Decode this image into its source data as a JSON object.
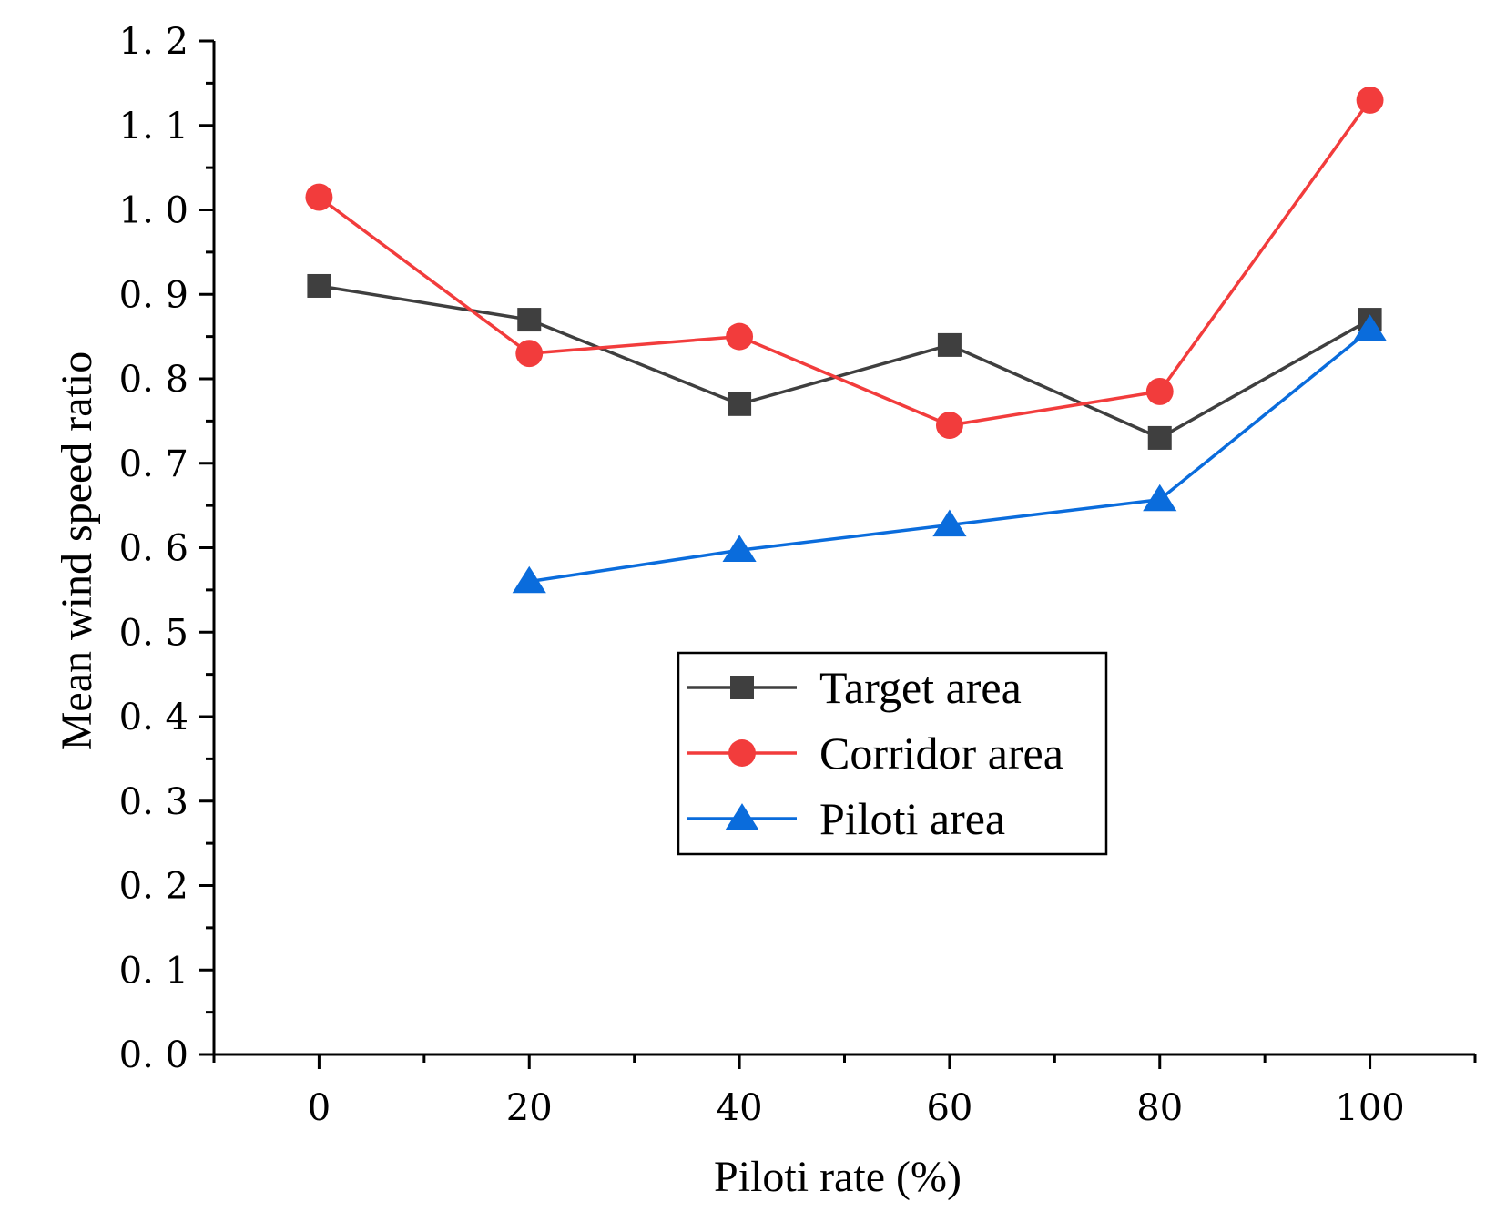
{
  "chart_data": {
    "type": "line",
    "title": "",
    "xlabel": "Piloti rate (%)",
    "ylabel": "Mean wind speed ratio",
    "xlim": [
      -10,
      110
    ],
    "ylim": [
      0.0,
      1.2
    ],
    "x_ticks": [
      0,
      20,
      40,
      60,
      80,
      100
    ],
    "x_tick_labels": [
      "0",
      "20",
      "40",
      "60",
      "80",
      "100"
    ],
    "y_ticks": [
      0.0,
      0.1,
      0.2,
      0.3,
      0.4,
      0.5,
      0.6,
      0.7,
      0.8,
      0.9,
      1.0,
      1.1,
      1.2
    ],
    "y_tick_labels": [
      "0. 0",
      "0. 1",
      "0. 2",
      "0. 3",
      "0. 4",
      "0. 5",
      "0. 6",
      "0. 7",
      "0. 8",
      "0. 9",
      "1. 0",
      "1. 1",
      "1. 2"
    ],
    "grid": false,
    "legend_position": "center",
    "series": [
      {
        "name": "Target area",
        "color": "#3f3f3f",
        "marker": "square",
        "x": [
          0,
          20,
          40,
          60,
          80,
          100
        ],
        "values": [
          0.91,
          0.87,
          0.77,
          0.84,
          0.73,
          0.87
        ]
      },
      {
        "name": "Corridor area",
        "color": "#f23c3c",
        "marker": "circle",
        "x": [
          0,
          20,
          40,
          60,
          80,
          100
        ],
        "values": [
          1.015,
          0.83,
          0.85,
          0.745,
          0.785,
          1.13
        ]
      },
      {
        "name": "Piloti area",
        "color": "#0a6cdc",
        "marker": "triangle",
        "x": [
          20,
          40,
          60,
          80,
          100
        ],
        "values": [
          0.56,
          0.597,
          0.627,
          0.657,
          0.858
        ]
      }
    ]
  }
}
